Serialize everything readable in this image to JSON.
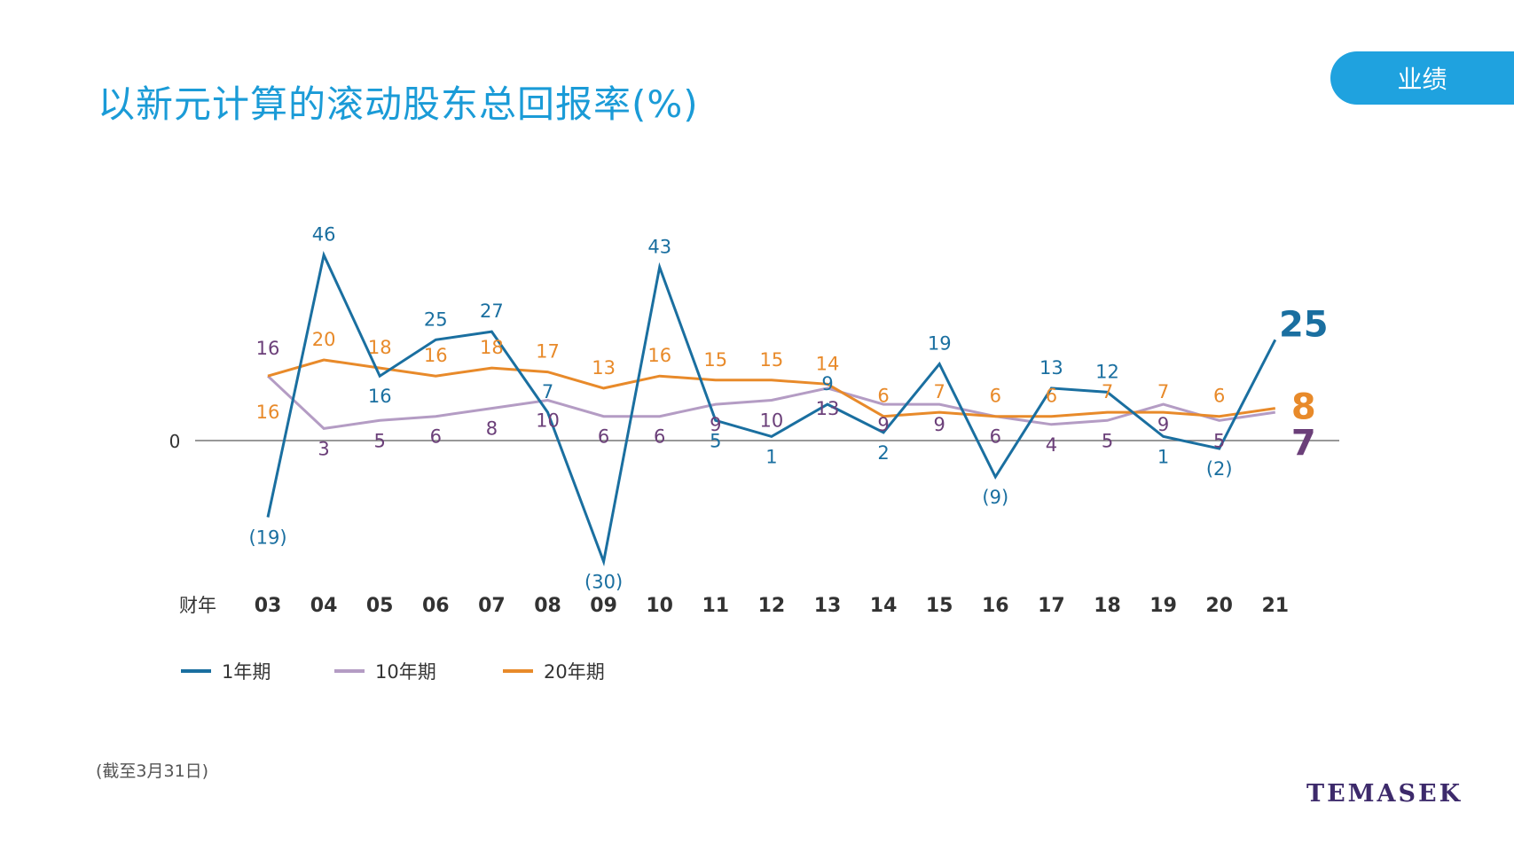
{
  "header": {
    "title": "以新元计算的滚动股东总回报率(%)",
    "badge": "业绩"
  },
  "footnote": "(截至3月31日)",
  "logo_text": "TEMASEK",
  "colors": {
    "title": "#1a9bd7",
    "one_year": "#1a6fa0",
    "ten_year": "#b49cc4",
    "ten_year_label": "#6b3f79",
    "twenty_year": "#e88a2a",
    "badge": "#1fa2df",
    "logo": "#3d2a6b"
  },
  "chart_data": {
    "type": "line",
    "x_axis_label": "财年",
    "zero_label": "0",
    "categories": [
      "03",
      "04",
      "05",
      "06",
      "07",
      "08",
      "09",
      "10",
      "11",
      "12",
      "13",
      "14",
      "15",
      "16",
      "17",
      "18",
      "19",
      "20",
      "21"
    ],
    "series": [
      {
        "name": "1年期",
        "values": [
          -19,
          46,
          16,
          25,
          27,
          7,
          -30,
          43,
          5,
          1,
          9,
          2,
          19,
          -9,
          13,
          12,
          1,
          -2,
          25
        ],
        "labels": [
          "(19)",
          "46",
          "16",
          "25",
          "27",
          "7",
          "(30)",
          "43",
          "5",
          "1",
          "9",
          "2",
          "19",
          "(9)",
          "13",
          "12",
          "1",
          "(2)",
          "25"
        ]
      },
      {
        "name": "10年期",
        "values": [
          16,
          3,
          5,
          6,
          8,
          10,
          6,
          6,
          9,
          10,
          13,
          9,
          9,
          6,
          4,
          5,
          9,
          5,
          7
        ],
        "labels": [
          "16",
          "3",
          "5",
          "6",
          "8",
          "10",
          "6",
          "6",
          "9",
          "10",
          "13",
          "9",
          "9",
          "6",
          "4",
          "5",
          "9",
          "5",
          "7"
        ]
      },
      {
        "name": "20年期",
        "values": [
          16,
          20,
          18,
          16,
          18,
          17,
          13,
          16,
          15,
          15,
          14,
          6,
          7,
          6,
          6,
          7,
          7,
          6,
          8
        ],
        "labels": [
          "16",
          "20",
          "18",
          "16",
          "18",
          "17",
          "13",
          "16",
          "15",
          "15",
          "14",
          "6",
          "7",
          "6",
          "6",
          "7",
          "7",
          "6",
          "8"
        ]
      }
    ],
    "legend": "bottom-left",
    "grid": false,
    "ylim": [
      -30,
      46
    ]
  }
}
